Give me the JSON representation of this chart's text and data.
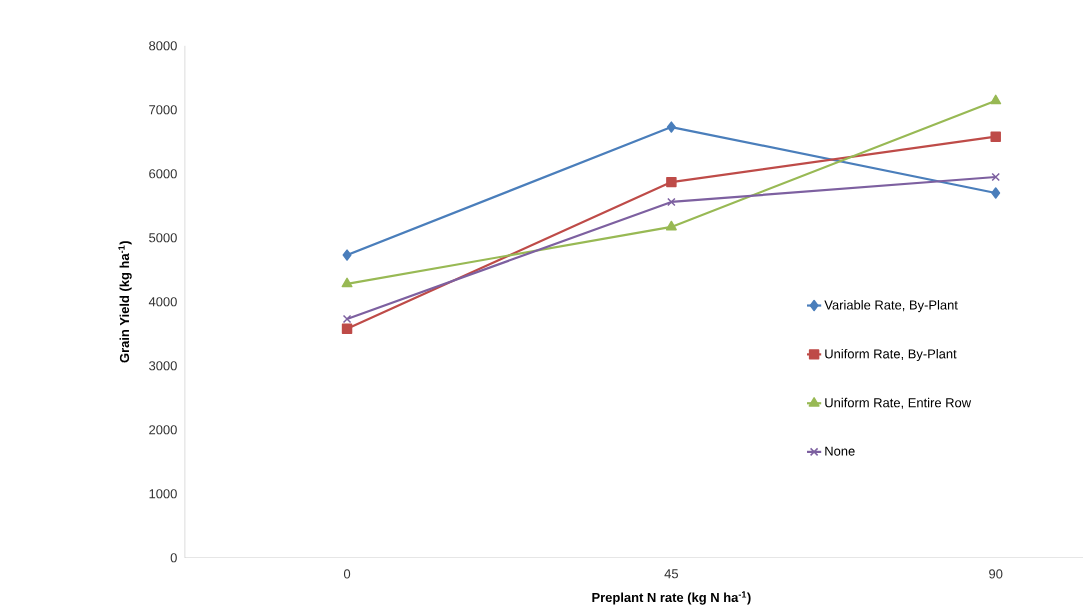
{
  "chart_data": {
    "type": "line",
    "xlabel": "Preplant N rate (kg N ha$^{-1}$)",
    "ylabel": "Grain Yield (kg ha$^{-1}$)",
    "categories": [
      "0",
      "45",
      "90"
    ],
    "series": [
      {
        "name": "Variable Rate, By-Plant",
        "color": "#4a7ebb",
        "marker": "diamond",
        "values": [
          4730,
          6730,
          5700
        ]
      },
      {
        "name": "Uniform Rate, By-Plant",
        "color": "#be4b48",
        "marker": "square",
        "values": [
          3580,
          5870,
          6580
        ]
      },
      {
        "name": "Uniform Rate, Entire Row",
        "color": "#98b954",
        "marker": "triangle",
        "values": [
          4280,
          5170,
          7140
        ]
      },
      {
        "name": "None",
        "color": "#7d60a0",
        "marker": "cross",
        "values": [
          3730,
          5560,
          5950
        ]
      }
    ],
    "ylim": [
      0,
      8000
    ],
    "yticks": [
      0,
      1000,
      2000,
      3000,
      4000,
      5000,
      6000,
      7000,
      8000
    ],
    "grid": false,
    "legend": "right"
  }
}
